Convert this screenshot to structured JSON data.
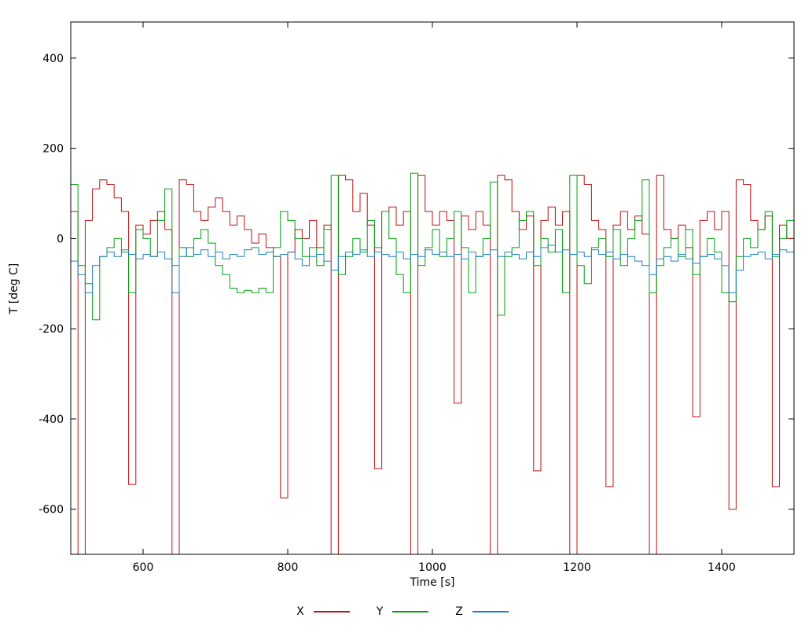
{
  "figure": {
    "background": "#ffffff"
  },
  "chart_data": {
    "type": "line",
    "title": "",
    "xlabel": "Time [s]",
    "ylabel": "T [deg C]",
    "xlim": [
      500,
      1500
    ],
    "ylim": [
      -700,
      480
    ],
    "xticks": [
      600,
      800,
      1000,
      1200,
      1400
    ],
    "yticks": [
      -600,
      -400,
      -200,
      0,
      200,
      400
    ],
    "grid": false,
    "legend_position": "bottom-center",
    "line_style": "steps",
    "x": [
      500,
      510,
      520,
      530,
      540,
      550,
      560,
      570,
      580,
      590,
      600,
      610,
      620,
      630,
      640,
      650,
      660,
      670,
      680,
      690,
      700,
      710,
      720,
      730,
      740,
      750,
      760,
      770,
      780,
      790,
      800,
      810,
      820,
      830,
      840,
      850,
      860,
      870,
      880,
      890,
      900,
      910,
      920,
      930,
      940,
      950,
      960,
      970,
      980,
      990,
      1000,
      1010,
      1020,
      1030,
      1040,
      1050,
      1060,
      1070,
      1080,
      1090,
      1100,
      1110,
      1120,
      1130,
      1140,
      1150,
      1160,
      1170,
      1180,
      1190,
      1200,
      1210,
      1220,
      1230,
      1240,
      1250,
      1260,
      1270,
      1280,
      1290,
      1300,
      1310,
      1320,
      1330,
      1340,
      1350,
      1360,
      1370,
      1380,
      1390,
      1400,
      1410,
      1420,
      1430,
      1440,
      1450,
      1460,
      1470,
      1480,
      1490,
      1500
    ],
    "series": [
      {
        "name": "X",
        "color": "#c01010",
        "values": [
          60,
          -700,
          40,
          110,
          130,
          120,
          90,
          60,
          -545,
          30,
          10,
          40,
          60,
          20,
          -700,
          130,
          120,
          60,
          40,
          70,
          90,
          60,
          30,
          50,
          20,
          -10,
          10,
          -20,
          -40,
          -575,
          -30,
          20,
          0,
          40,
          -20,
          30,
          -700,
          140,
          130,
          60,
          100,
          30,
          -510,
          60,
          70,
          30,
          60,
          -700,
          140,
          60,
          30,
          60,
          40,
          -365,
          50,
          20,
          60,
          30,
          -700,
          140,
          130,
          60,
          20,
          50,
          -515,
          40,
          70,
          30,
          60,
          -700,
          140,
          120,
          40,
          20,
          -550,
          30,
          60,
          20,
          50,
          10,
          -700,
          140,
          20,
          0,
          30,
          -20,
          -395,
          40,
          60,
          20,
          60,
          -600,
          130,
          120,
          40,
          20,
          50,
          -550,
          30,
          0,
          60
        ]
      },
      {
        "name": "Y",
        "color": "#00a010",
        "values": [
          120,
          -60,
          -100,
          -180,
          -40,
          -20,
          0,
          -30,
          -120,
          20,
          0,
          -40,
          40,
          110,
          -60,
          -20,
          -40,
          0,
          20,
          -10,
          -60,
          -80,
          -110,
          -120,
          -115,
          -120,
          -110,
          -120,
          -20,
          60,
          40,
          0,
          -40,
          -20,
          -60,
          20,
          140,
          -80,
          -40,
          0,
          -30,
          40,
          -20,
          60,
          0,
          -80,
          -120,
          145,
          -60,
          -20,
          20,
          -40,
          0,
          60,
          -20,
          -120,
          -40,
          0,
          125,
          -170,
          -40,
          -20,
          40,
          60,
          -60,
          0,
          -30,
          20,
          -120,
          140,
          -60,
          -100,
          -20,
          0,
          -40,
          20,
          -60,
          0,
          40,
          130,
          -120,
          -60,
          -20,
          0,
          -40,
          20,
          -80,
          -40,
          0,
          -30,
          -120,
          -140,
          -40,
          0,
          -20,
          20,
          60,
          -40,
          0,
          40,
          60
        ]
      },
      {
        "name": "Z",
        "color": "#2080c0",
        "values": [
          -50,
          -80,
          -120,
          -60,
          -40,
          -30,
          -40,
          -25,
          -35,
          -45,
          -35,
          -40,
          -30,
          -45,
          -120,
          -40,
          -20,
          -35,
          -25,
          -40,
          -30,
          -45,
          -35,
          -40,
          -25,
          -20,
          -35,
          -30,
          -40,
          -35,
          -30,
          -45,
          -60,
          -40,
          -35,
          -50,
          -70,
          -40,
          -30,
          -35,
          -25,
          -40,
          -30,
          -35,
          -40,
          -30,
          -45,
          -35,
          -40,
          -25,
          -35,
          -30,
          -40,
          -35,
          -45,
          -30,
          -40,
          -35,
          -25,
          -40,
          -30,
          -35,
          -45,
          -30,
          -40,
          -20,
          -15,
          -30,
          -25,
          -35,
          -30,
          -40,
          -25,
          -35,
          -30,
          -45,
          -35,
          -40,
          -50,
          -60,
          -80,
          -45,
          -40,
          -50,
          -35,
          -45,
          -55,
          -40,
          -35,
          -45,
          -60,
          -120,
          -70,
          -40,
          -35,
          -30,
          -45,
          -35,
          -25,
          -30,
          -20
        ]
      }
    ]
  }
}
